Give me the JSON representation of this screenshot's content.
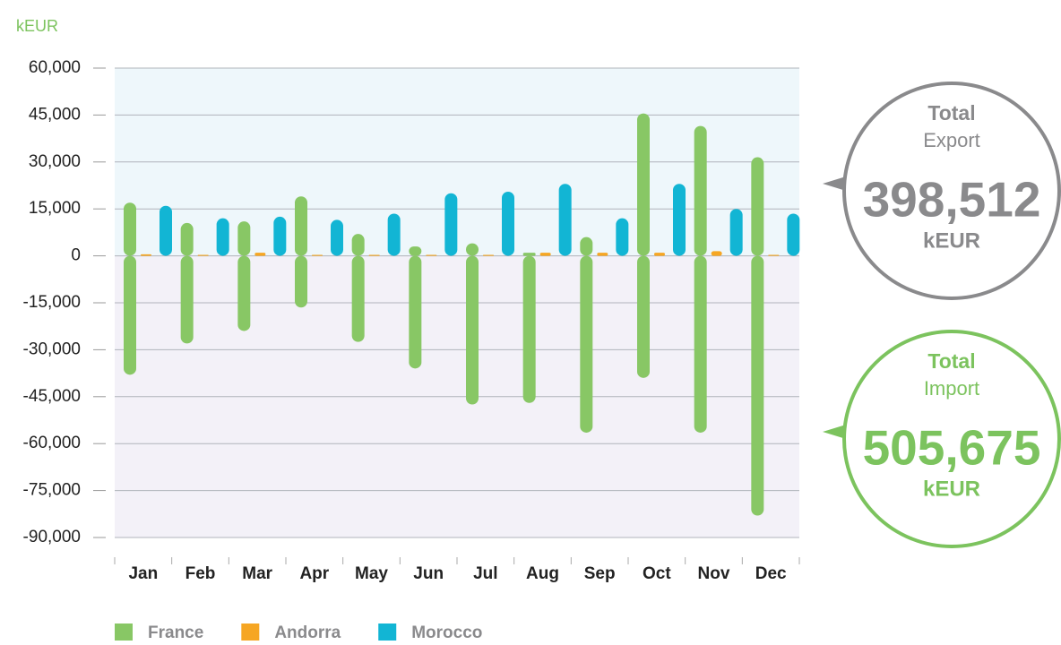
{
  "chart_data": {
    "type": "bar",
    "unit_label": "kEUR",
    "categories": [
      "Jan",
      "Feb",
      "Mar",
      "Apr",
      "May",
      "Jun",
      "Jul",
      "Aug",
      "Sep",
      "Oct",
      "Nov",
      "Dec"
    ],
    "series": [
      {
        "name": "France",
        "color": "#88c765",
        "values": [
          17000,
          10500,
          11000,
          19000,
          7000,
          3000,
          4000,
          1000,
          6000,
          45500,
          41500,
          31500
        ],
        "import": [
          -38000,
          -28000,
          -24000,
          -16500,
          -27500,
          -36000,
          -47500,
          -47000,
          -56500,
          -39000,
          -56500,
          -83000
        ]
      },
      {
        "name": "Andorra",
        "color": "#f6a623",
        "values": [
          500,
          300,
          1000,
          300,
          300,
          300,
          300,
          1000,
          1000,
          1000,
          1500,
          300
        ]
      },
      {
        "name": "Morocco",
        "color": "#12b5d4",
        "values": [
          16000,
          12000,
          12500,
          11500,
          13500,
          20000,
          20500,
          23000,
          12000,
          23000,
          15000,
          13500
        ]
      }
    ],
    "ylim": [
      -90000,
      60000
    ],
    "yticks": [
      {
        "value": 60000,
        "label": "60,000"
      },
      {
        "value": 45000,
        "label": "45,000"
      },
      {
        "value": 30000,
        "label": "30,000"
      },
      {
        "value": 15000,
        "label": "15,000"
      },
      {
        "value": 0,
        "label": "0"
      },
      {
        "value": -15000,
        "label": "-15,000"
      },
      {
        "value": -30000,
        "label": "-30,000"
      },
      {
        "value": -45000,
        "label": "-45,000"
      },
      {
        "value": -60000,
        "label": "-60,000"
      },
      {
        "value": -75000,
        "label": "-75,000"
      },
      {
        "value": -90000,
        "label": "-90,000"
      }
    ],
    "grid": true,
    "totals": [
      {
        "title": "Total",
        "subtitle": "Export",
        "value": "398,512",
        "unit": "kEUR",
        "color": "#8a8a8c",
        "text_color": "#8a8a8c"
      },
      {
        "title": "Total",
        "subtitle": "Import",
        "value": "505,675",
        "unit": "kEUR",
        "color": "#7cc35e",
        "text_color": "#7cc35e"
      }
    ]
  }
}
